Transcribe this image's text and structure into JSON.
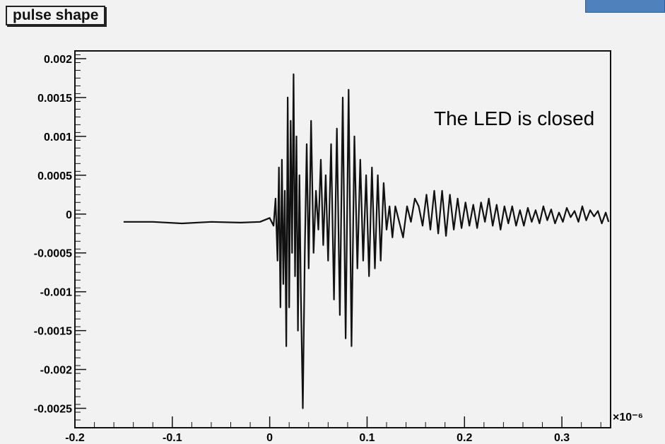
{
  "slide": {
    "note_text": "The LED is closed",
    "accent_color": "#4f81bd"
  },
  "chart_data": {
    "type": "line",
    "title": "pulse shape",
    "xlabel": "",
    "ylabel": "",
    "x_exponent_label": "×10⁻⁶",
    "xlim": [
      -0.2,
      0.35
    ],
    "ylim": [
      -0.00275,
      0.0021
    ],
    "grid": false,
    "x_ticks": [
      -0.2,
      -0.1,
      0,
      0.1,
      0.2,
      0.3
    ],
    "x_tick_labels": [
      "-0.2",
      "-0.1",
      "0",
      "0.1",
      "0.2",
      "0.3"
    ],
    "y_ticks": [
      0.002,
      0.0015,
      0.001,
      0.0005,
      0,
      -0.0005,
      -0.001,
      -0.0015,
      -0.002,
      -0.0025
    ],
    "y_tick_labels": [
      "0.002",
      "0.0015",
      "0.001",
      "0.0005",
      "0",
      "-0.0005",
      "-0.001",
      "-0.0015",
      "-0.002",
      "-0.0025"
    ],
    "line_color": "#111111",
    "series": [
      {
        "x": [
          -0.15,
          -0.12,
          -0.09,
          -0.06,
          -0.03,
          -0.01,
          0.0,
          0.004,
          0.006,
          0.008,
          0.0095,
          0.011,
          0.0125,
          0.014,
          0.0155,
          0.017,
          0.0185,
          0.02,
          0.0215,
          0.023,
          0.0245,
          0.026,
          0.0275,
          0.029,
          0.0305,
          0.032,
          0.034,
          0.036,
          0.038,
          0.04,
          0.0425,
          0.045,
          0.0475,
          0.05,
          0.0525,
          0.055,
          0.0575,
          0.06,
          0.063,
          0.066,
          0.069,
          0.072,
          0.075,
          0.078,
          0.081,
          0.084,
          0.087,
          0.09,
          0.093,
          0.096,
          0.099,
          0.102,
          0.105,
          0.108,
          0.111,
          0.114,
          0.117,
          0.12,
          0.123,
          0.126,
          0.129,
          0.133,
          0.137,
          0.141,
          0.145,
          0.149,
          0.153,
          0.157,
          0.161,
          0.165,
          0.169,
          0.173,
          0.177,
          0.181,
          0.185,
          0.189,
          0.193,
          0.197,
          0.201,
          0.205,
          0.209,
          0.213,
          0.217,
          0.221,
          0.225,
          0.229,
          0.233,
          0.237,
          0.241,
          0.245,
          0.249,
          0.253,
          0.257,
          0.261,
          0.265,
          0.269,
          0.273,
          0.277,
          0.281,
          0.285,
          0.289,
          0.293,
          0.297,
          0.301,
          0.305,
          0.309,
          0.313,
          0.317,
          0.321,
          0.325,
          0.329,
          0.333,
          0.337,
          0.341,
          0.345,
          0.348
        ],
        "y": [
          -0.0001,
          -0.0001,
          -0.00012,
          -0.0001,
          -0.00011,
          -0.0001,
          -5e-05,
          -0.00015,
          0.0002,
          -0.0006,
          0.0006,
          -0.0012,
          0.0007,
          -0.0009,
          0.0003,
          -0.0017,
          0.0015,
          -0.0012,
          0.0012,
          -0.0005,
          0.0018,
          -0.0008,
          0.001,
          -0.0015,
          0.0005,
          -0.001,
          -0.0025,
          -0.0005,
          0.0009,
          -0.0007,
          0.0012,
          -0.0005,
          0.0003,
          -0.0002,
          0.0007,
          -0.0004,
          0.0005,
          -0.0006,
          0.0009,
          -0.0011,
          0.0011,
          -0.0013,
          0.0015,
          -0.0016,
          0.0016,
          -0.0017,
          0.001,
          -0.0007,
          0.0007,
          -0.0006,
          0.0005,
          -0.0008,
          0.0006,
          -0.0007,
          0.0005,
          -0.0006,
          0.0004,
          -0.0002,
          0.0001,
          -0.0003,
          0.0001,
          -0.0001,
          -0.0003,
          0.0001,
          -0.0001,
          0.0002,
          0.0001,
          -0.00015,
          0.00025,
          -0.0002,
          0.0003,
          -0.00025,
          0.0003,
          -0.00028,
          0.00025,
          -0.0002,
          0.0002,
          -0.00018,
          0.00015,
          -0.00015,
          0.00012,
          -0.00018,
          0.00015,
          -0.0001,
          0.0002,
          -0.00015,
          0.00012,
          -0.0002,
          0.0001,
          -0.00012,
          0.0001,
          -0.00015,
          5e-05,
          -0.00015,
          8e-05,
          -0.0001,
          5e-05,
          -0.00012,
          0.0001,
          -8e-05,
          6e-05,
          -0.00012,
          2e-05,
          -0.0001,
          8e-05,
          -4e-05,
          4e-05,
          -0.0001,
          0.0001,
          -8e-05,
          5e-05,
          -3e-05,
          4e-05,
          -0.00012,
          2e-05,
          -0.0001
        ]
      }
    ]
  }
}
